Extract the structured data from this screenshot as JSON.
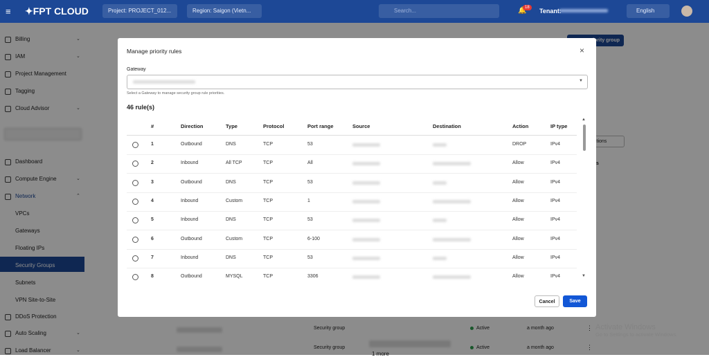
{
  "navbar": {
    "brand": "FPT CLOUD",
    "project": "Project: PROJECT_012...",
    "region": "Region: Saigon (Vietn...",
    "search_placeholder": "Search...",
    "notifications": "18",
    "tenant_label": "Tenant:",
    "language": "English"
  },
  "sidebar": {
    "group1": [
      "Billing",
      "IAM",
      "Project Management",
      "Tagging",
      "Cloud Advisor"
    ],
    "group2": [
      "Dashboard",
      "Compute Engine",
      "Network"
    ],
    "network_children": [
      "VPCs",
      "Gateways",
      "Floating IPs",
      "Security Groups",
      "Subnets",
      "VPN Site-to-Site"
    ],
    "group3": [
      "DDoS Protection",
      "Auto Scaling",
      "Load Balancer"
    ]
  },
  "background": {
    "create_button": "iority group",
    "actions_button": "ctions",
    "column_hint": "s",
    "rows": [
      {
        "type": "Security group",
        "status": "Active",
        "time": "a month ago"
      },
      {
        "type": "Security group",
        "status": "Active",
        "time": "a month ago",
        "more": "1 more"
      }
    ],
    "watermark_title": "Activate Windows",
    "watermark_text": "Go to Settings to activate Windows."
  },
  "modal": {
    "title": "Manage priority rules",
    "gateway_label": "Gateway",
    "gateway_help": "Select a Gateway to manage security group rule priorities.",
    "count": "46 rule(s)",
    "headers": [
      "#",
      "Direction",
      "Type",
      "Protocol",
      "Port range",
      "Source",
      "Destination",
      "Action",
      "IP type"
    ],
    "rows": [
      [
        "1",
        "Outbound",
        "DNS",
        "TCP",
        "53",
        "DROP",
        "IPv4"
      ],
      [
        "2",
        "Inbound",
        "All TCP",
        "TCP",
        "All",
        "Allow",
        "IPv4"
      ],
      [
        "3",
        "Outbound",
        "DNS",
        "TCP",
        "53",
        "Allow",
        "IPv4"
      ],
      [
        "4",
        "Inbound",
        "Custom",
        "TCP",
        "1",
        "Allow",
        "IPv4"
      ],
      [
        "5",
        "Inbound",
        "DNS",
        "TCP",
        "53",
        "Allow",
        "IPv4"
      ],
      [
        "6",
        "Outbound",
        "Custom",
        "TCP",
        "6-100",
        "Allow",
        "IPv4"
      ],
      [
        "7",
        "Inbound",
        "DNS",
        "TCP",
        "53",
        "Allow",
        "IPv4"
      ],
      [
        "8",
        "Outbound",
        "MYSQL",
        "TCP",
        "3306",
        "Allow",
        "IPv4"
      ]
    ],
    "cancel": "Cancel",
    "save": "Save"
  }
}
